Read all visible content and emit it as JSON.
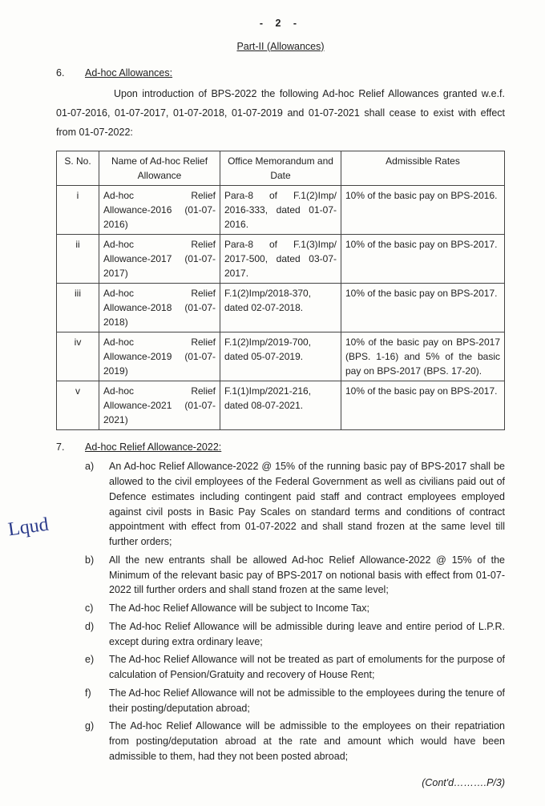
{
  "page_number_display": "- 2 -",
  "part_title": "Part-II (Allowances)",
  "section6": {
    "num": "6.",
    "heading": "Ad-hoc Allowances:",
    "para": "Upon introduction of BPS-2022 the following Ad-hoc Relief Allowances granted w.e.f. 01-07-2016, 01-07-2017, 01-07-2018, 01-07-2019 and 01-07-2021 shall cease to exist with effect from 01-07-2022:"
  },
  "table": {
    "headers": {
      "c1": "S. No.",
      "c2": "Name of Ad-hoc Relief Allowance",
      "c3": "Office Memorandum and Date",
      "c4": "Admissible Rates"
    },
    "rows": [
      {
        "sn": "i",
        "name_a": "Ad-hoc",
        "name_b": "Relief",
        "name_rest": "Allowance-2016 (01-07-2016)",
        "memo": "Para-8 of F.1(2)Imp/ 2016-333, dated 01-07-2016.",
        "rate": "10% of the basic pay on BPS-2016."
      },
      {
        "sn": "ii",
        "name_a": "Ad-hoc",
        "name_b": "Relief",
        "name_rest": "Allowance-2017 (01-07-2017)",
        "memo": "Para-8 of F.1(3)Imp/ 2017-500, dated 03-07-2017.",
        "rate": "10% of the basic pay on BPS-2017."
      },
      {
        "sn": "iii",
        "name_a": "Ad-hoc",
        "name_b": "Relief",
        "name_rest": "Allowance-2018 (01-07-2018)",
        "memo": "F.1(2)Imp/2018-370, dated 02-07-2018.",
        "rate": "10% of the basic pay on BPS-2017."
      },
      {
        "sn": "iv",
        "name_a": "Ad-hoc",
        "name_b": "Relief",
        "name_rest": "Allowance-2019 (01-07-2019)",
        "memo": "F.1(2)Imp/2019-700, dated 05-07-2019.",
        "rate": "10% of the basic pay on BPS-2017 (BPS. 1-16) and 5% of the basic pay on BPS-2017 (BPS. 17-20)."
      },
      {
        "sn": "v",
        "name_a": "Ad-hoc",
        "name_b": "Relief",
        "name_rest": "Allowance-2021 (01-07-2021)",
        "memo": "F.1(1)Imp/2021-216, dated 08-07-2021.",
        "rate": "10% of the basic pay on BPS-2017."
      }
    ]
  },
  "section7": {
    "num": "7.",
    "heading": "Ad-hoc Relief Allowance-2022:",
    "items": [
      {
        "l": "a)",
        "t": "An Ad-hoc Relief Allowance-2022 @ 15% of the running basic pay of BPS-2017 shall be allowed to the civil employees of the Federal Government as well as civilians paid out of Defence estimates including contingent paid staff and contract employees employed against civil posts in Basic Pay Scales on standard terms and conditions of contract appointment with effect from 01-07-2022 and shall stand frozen at the same level till further orders;"
      },
      {
        "l": "b)",
        "t": "All the new entrants shall be allowed Ad-hoc Relief Allowance-2022 @ 15% of the Minimum of the relevant basic pay of BPS-2017 on notional basis with effect from 01-07-2022 till further orders and shall stand frozen at the same level;"
      },
      {
        "l": "c)",
        "t": "The Ad-hoc Relief Allowance will be subject to Income Tax;"
      },
      {
        "l": "d)",
        "t": "The Ad-hoc Relief Allowance will be admissible during leave and entire period of L.P.R. except during extra ordinary leave;"
      },
      {
        "l": "e)",
        "t": "The Ad-hoc Relief Allowance will not be treated as part of emoluments for the purpose of calculation of Pension/Gratuity and recovery of House Rent;"
      },
      {
        "l": "f)",
        "t": "The Ad-hoc Relief Allowance will not be admissible to the employees during the tenure of their posting/deputation abroad;"
      },
      {
        "l": "g)",
        "t": "The Ad-hoc Relief Allowance will be admissible to the employees on their repatriation from posting/deputation abroad at the rate and amount which would have been admissible to them, had they not been posted abroad;"
      }
    ]
  },
  "signature_text": "Lqud",
  "contd": "(Cont'd……….P/3)"
}
